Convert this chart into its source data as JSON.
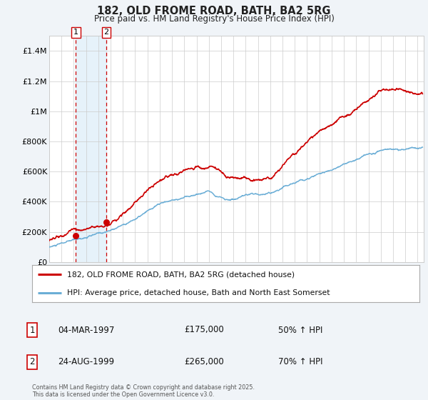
{
  "title": "182, OLD FROME ROAD, BATH, BA2 5RG",
  "subtitle": "Price paid vs. HM Land Registry's House Price Index (HPI)",
  "legend_line1": "182, OLD FROME ROAD, BATH, BA2 5RG (detached house)",
  "legend_line2": "HPI: Average price, detached house, Bath and North East Somerset",
  "sale1_label": "1",
  "sale1_date": "04-MAR-1997",
  "sale1_price": "£175,000",
  "sale1_hpi": "50% ↑ HPI",
  "sale1_year": 1997.17,
  "sale1_value": 175000,
  "sale2_label": "2",
  "sale2_date": "24-AUG-1999",
  "sale2_price": "£265,000",
  "sale2_hpi": "70% ↑ HPI",
  "sale2_year": 1999.65,
  "sale2_value": 265000,
  "hpi_color": "#6baed6",
  "price_color": "#cc0000",
  "bg_color": "#f0f4f8",
  "plot_bg": "#ffffff",
  "grid_color": "#cccccc",
  "vline_color": "#cc0000",
  "shade_color": "#d6eaf8",
  "footer": "Contains HM Land Registry data © Crown copyright and database right 2025.\nThis data is licensed under the Open Government Licence v3.0.",
  "ylim": [
    0,
    1500000
  ],
  "yticks": [
    0,
    200000,
    400000,
    600000,
    800000,
    1000000,
    1200000,
    1400000
  ],
  "ytick_labels": [
    "£0",
    "£200K",
    "£400K",
    "£600K",
    "£800K",
    "£1M",
    "£1.2M",
    "£1.4M"
  ],
  "xlim_start": 1995.0,
  "xlim_end": 2025.5
}
